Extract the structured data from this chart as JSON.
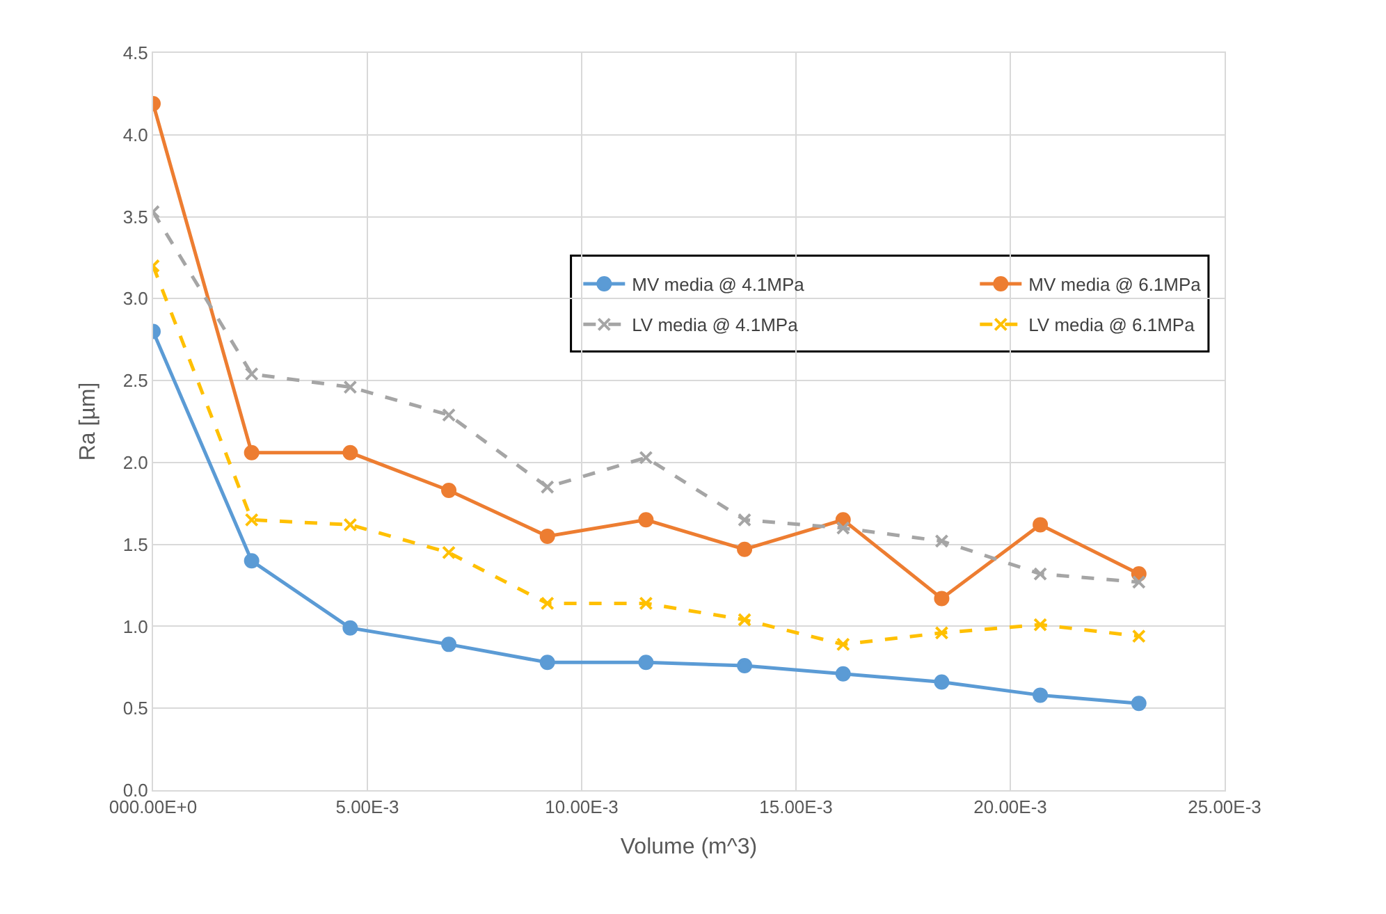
{
  "chart_data": {
    "type": "line",
    "xlabel": "Volume (m^3)",
    "ylabel": "Ra [µm]",
    "x": [
      0,
      0.0023,
      0.0046,
      0.0069,
      0.0092,
      0.0115,
      0.0138,
      0.0161,
      0.0184,
      0.0207,
      0.023
    ],
    "series": [
      {
        "name": "MV media @ 4.1MPa",
        "color": "#5b9bd5",
        "marker": "circle",
        "line_style": "solid",
        "values": [
          2.8,
          1.4,
          0.99,
          0.89,
          0.78,
          0.78,
          0.76,
          0.71,
          0.66,
          0.58,
          0.53
        ]
      },
      {
        "name": "MV media @ 6.1MPa",
        "color": "#ed7d31",
        "marker": "circle",
        "line_style": "solid",
        "values": [
          4.19,
          2.06,
          2.06,
          1.83,
          1.55,
          1.65,
          1.47,
          1.65,
          1.17,
          1.62,
          1.32
        ]
      },
      {
        "name": "LV media @ 4.1MPa",
        "color": "#a5a5a5",
        "marker": "cross",
        "line_style": "dashed",
        "values": [
          3.53,
          2.54,
          2.46,
          2.29,
          1.85,
          2.03,
          1.65,
          1.6,
          1.52,
          1.32,
          1.27
        ]
      },
      {
        "name": "LV media @ 6.1MPa",
        "color": "#ffc000",
        "marker": "cross",
        "line_style": "dashed",
        "values": [
          3.2,
          1.65,
          1.62,
          1.45,
          1.14,
          1.14,
          1.04,
          0.89,
          0.96,
          1.01,
          0.94
        ]
      }
    ],
    "xlim": [
      0,
      0.025
    ],
    "xticks": [
      {
        "value": 0,
        "label": "000.00E+0"
      },
      {
        "value": 0.005,
        "label": "5.00E-3"
      },
      {
        "value": 0.01,
        "label": "10.00E-3"
      },
      {
        "value": 0.015,
        "label": "15.00E-3"
      },
      {
        "value": 0.02,
        "label": "20.00E-3"
      },
      {
        "value": 0.025,
        "label": "25.00E-3"
      }
    ],
    "ylim": [
      0,
      4.5
    ],
    "yticks": [
      {
        "value": 0,
        "label": "0.0"
      },
      {
        "value": 0.5,
        "label": "0.5"
      },
      {
        "value": 1,
        "label": "1.0"
      },
      {
        "value": 1.5,
        "label": "1.5"
      },
      {
        "value": 2,
        "label": "2.0"
      },
      {
        "value": 2.5,
        "label": "2.5"
      },
      {
        "value": 3,
        "label": "3.0"
      },
      {
        "value": 3.5,
        "label": "3.5"
      },
      {
        "value": 4,
        "label": "4.0"
      },
      {
        "value": 4.5,
        "label": "4.5"
      }
    ],
    "grid": true,
    "legend": "top right"
  }
}
